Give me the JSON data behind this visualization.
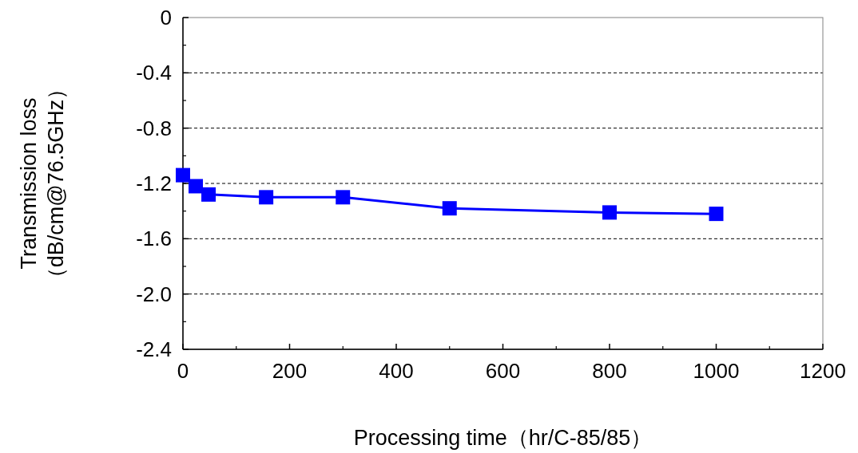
{
  "chart_data": {
    "type": "line",
    "xlabel": "Processing time（hr/C-85/85）",
    "ylabel": "Transmission loss\n（dB/cm@76.5GHz）",
    "x": [
      0,
      24,
      48,
      156,
      300,
      500,
      800,
      1000
    ],
    "series": [
      {
        "color": "#0000ff",
        "values": [
          -1.14,
          -1.22,
          -1.28,
          -1.3,
          -1.3,
          -1.38,
          -1.41,
          -1.42
        ]
      }
    ],
    "xlim": [
      0,
      1200
    ],
    "xticks": [
      0,
      200,
      400,
      600,
      800,
      1000,
      1200
    ],
    "ylim": [
      -2.4,
      0
    ],
    "yticks": [
      0,
      -0.4,
      -0.8,
      -1.2,
      -1.6,
      {
        "value": -2.0,
        "label": "-2.0"
      },
      -2.4
    ],
    "grid": "y",
    "marker": "square",
    "line_style": "solid"
  }
}
